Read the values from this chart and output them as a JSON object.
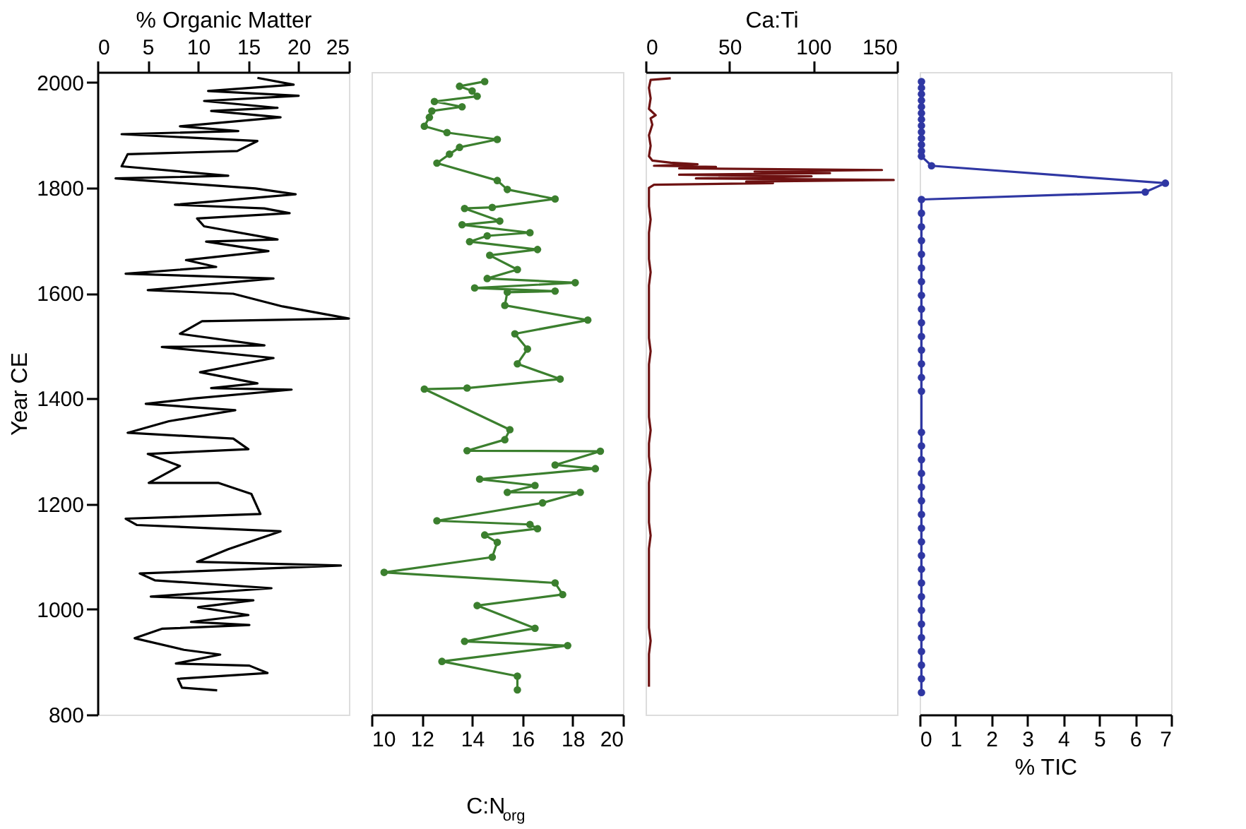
{
  "chart_data": [
    {
      "type": "line",
      "orientation": "horizontal",
      "ylabel": "Year CE",
      "ylim": [
        800,
        2020
      ],
      "yticks": [
        800,
        1000,
        1200,
        1400,
        1600,
        1800,
        2000
      ],
      "x2label": "% Organic Matter",
      "x2lim": [
        0,
        25
      ],
      "x2ticks": [
        0,
        5,
        10,
        15,
        20,
        25
      ],
      "marker": "none",
      "x": [
        2009,
        1996,
        1984,
        1975,
        1965,
        1952,
        1946,
        1934,
        1917,
        1908,
        1902,
        1889,
        1870,
        1864,
        1841,
        1823,
        1818,
        1799,
        1788,
        1768,
        1761,
        1752,
        1742,
        1727,
        1702,
        1698,
        1680,
        1663,
        1650,
        1637,
        1628,
        1606,
        1599,
        1575,
        1552,
        1547,
        1523,
        1501,
        1498,
        1477,
        1450,
        1429,
        1420,
        1417,
        1400,
        1390,
        1378,
        1357,
        1335,
        1324,
        1304,
        1295,
        1272,
        1240,
        1240,
        1219,
        1181,
        1172,
        1160,
        1148,
        1114,
        1090,
        1083,
        1068,
        1055,
        1040,
        1024,
        1017,
        1004,
        989,
        976,
        970,
        963,
        945,
        923,
        914,
        897,
        893,
        879,
        868,
        851,
        846
      ],
      "series": [
        {
          "axis": "x2",
          "color": "#000000",
          "values": [
            15.9,
            19.5,
            11,
            20,
            10.6,
            17.9,
            11.3,
            18.2,
            8.2,
            14,
            2.4,
            15.9,
            13.9,
            3,
            2.4,
            13,
            1.8,
            15.7,
            19.7,
            7.7,
            16.6,
            19.1,
            9.9,
            10.6,
            17.9,
            10.8,
            17,
            8.8,
            11.8,
            2.8,
            17.5,
            5,
            13.5,
            18.4,
            25,
            10.4,
            8.2,
            16.6,
            6.4,
            17.5,
            10.2,
            15.9,
            11.3,
            19.3,
            9.5,
            4.8,
            13.7,
            7.1,
            3,
            13.5,
            15,
            5,
            8.2,
            5.1,
            12,
            15.3,
            16.2,
            2.8,
            3.9,
            18.2,
            13,
            9.9,
            24.2,
            4.2,
            5.7,
            17.3,
            5.3,
            15.5,
            10,
            15,
            9.3,
            15.1,
            6.4,
            3.7,
            8.6,
            12.2,
            7.8,
            15.1,
            16.9,
            8,
            8.4,
            11.9
          ]
        }
      ]
    },
    {
      "type": "line",
      "orientation": "horizontal",
      "ylim": [
        800,
        2020
      ],
      "xlabel": "C:N$_{org}$",
      "xlim": [
        10,
        20
      ],
      "xticks": [
        10,
        12,
        14,
        16,
        18,
        20
      ],
      "marker": "circle",
      "tick_labels": "x",
      "x": [
        2002,
        1993,
        1984,
        1974,
        1964,
        1954,
        1946,
        1934,
        1917,
        1905,
        1892,
        1877,
        1864,
        1847,
        1814,
        1797,
        1779,
        1763,
        1761,
        1737,
        1730,
        1715,
        1709,
        1698,
        1683,
        1672,
        1645,
        1628,
        1620,
        1610,
        1604,
        1602,
        1577,
        1549,
        1523,
        1494,
        1466,
        1437,
        1420,
        1418,
        1341,
        1322,
        1301,
        1300,
        1274,
        1267,
        1247,
        1235,
        1222,
        1222,
        1202,
        1168,
        1161,
        1153,
        1141,
        1127,
        1099,
        1070,
        1050,
        1028,
        1007,
        964,
        939,
        931,
        901,
        873,
        847
      ],
      "series": [
        {
          "color": "#3b7f2e",
          "values": [
            14.5,
            13.5,
            14,
            14.2,
            12.5,
            13.6,
            12.4,
            12.3,
            12.1,
            13,
            15,
            13.5,
            13.1,
            12.6,
            15,
            15.4,
            17.3,
            14.8,
            13.7,
            15.1,
            13.6,
            16.3,
            14.6,
            13.9,
            16.6,
            14.7,
            15.8,
            14.6,
            18.1,
            14.1,
            17.3,
            15.4,
            15.3,
            18.6,
            15.7,
            16.2,
            15.8,
            17.5,
            13.8,
            12.1,
            15.5,
            15.3,
            13.8,
            19.1,
            17.3,
            18.9,
            14.3,
            16.5,
            15.4,
            18.3,
            16.8,
            12.6,
            16.3,
            16.6,
            14.5,
            15,
            14.8,
            10.5,
            17.3,
            17.6,
            14.2,
            16.5,
            13.7,
            17.8,
            12.8,
            15.8,
            15.8
          ]
        }
      ]
    },
    {
      "type": "line",
      "orientation": "horizontal",
      "ylim": [
        800,
        2020
      ],
      "x2label": "Ca:Ti",
      "x2lim": [
        0,
        150
      ],
      "x2ticks": [
        0,
        50,
        100,
        150
      ],
      "marker": "none",
      "tick_labels": "x",
      "x": [
        2008,
        2005,
        1990,
        1970,
        1950,
        1938,
        1932,
        1920,
        1900,
        1880,
        1860,
        1852,
        1848,
        1845,
        1842,
        1840,
        1837,
        1834,
        1831,
        1828,
        1825,
        1822,
        1818,
        1815,
        1812,
        1809,
        1806,
        1800,
        1790,
        1765,
        1740,
        1715,
        1690,
        1665,
        1640,
        1615,
        1590,
        1565,
        1540,
        1515,
        1490,
        1465,
        1440,
        1415,
        1390,
        1365,
        1340,
        1315,
        1290,
        1265,
        1240,
        1215,
        1190,
        1165,
        1140,
        1115,
        1090,
        1065,
        1040,
        1015,
        990,
        965,
        940,
        915,
        890,
        865,
        853
      ],
      "series": [
        {
          "axis": "x2",
          "color": "#6e1212",
          "values": [
            15,
            3,
            2,
            3,
            2,
            6,
            3,
            4,
            2,
            3,
            2,
            4,
            15,
            31,
            5,
            42,
            20,
            141,
            65,
            110,
            20,
            99,
            30,
            148,
            60,
            76,
            5,
            2,
            2,
            2,
            3,
            2,
            2,
            2,
            3,
            2,
            2,
            2,
            2,
            2,
            3,
            2,
            2,
            2,
            2,
            2,
            3,
            2,
            2,
            3,
            2,
            2,
            2,
            2,
            3,
            2,
            2,
            2,
            2,
            2,
            2,
            2,
            3,
            2,
            2,
            2,
            2
          ]
        }
      ]
    },
    {
      "type": "line",
      "orientation": "horizontal",
      "ylim": [
        800,
        2020
      ],
      "xlabel": "% TIC",
      "xlim": [
        0,
        7
      ],
      "xticks": [
        0,
        1,
        2,
        3,
        4,
        5,
        6,
        7
      ],
      "marker": "circle",
      "tick_labels": "x",
      "x": [
        2002,
        1990,
        1978,
        1966,
        1954,
        1942,
        1930,
        1918,
        1906,
        1894,
        1882,
        1870,
        1860,
        1842,
        1809,
        1792,
        1778,
        1752,
        1726,
        1700,
        1674,
        1648,
        1622,
        1596,
        1570,
        1544,
        1518,
        1492,
        1466,
        1440,
        1414,
        1336,
        1310,
        1284,
        1258,
        1232,
        1206,
        1180,
        1154,
        1128,
        1102,
        1076,
        1050,
        1024,
        998,
        972,
        946,
        920,
        894,
        868,
        842
      ],
      "series": [
        {
          "color": "#2f37a3",
          "values": [
            0.05,
            0.05,
            0.05,
            0.05,
            0.05,
            0.05,
            0.05,
            0.05,
            0.05,
            0.05,
            0.05,
            0.05,
            0.05,
            0.33,
            6.84,
            6.28,
            0.05,
            0.05,
            0.05,
            0.05,
            0.05,
            0.05,
            0.05,
            0.05,
            0.05,
            0.05,
            0.05,
            0.05,
            0.05,
            0.05,
            0.05,
            0.05,
            0.05,
            0.05,
            0.05,
            0.05,
            0.05,
            0.05,
            0.05,
            0.05,
            0.05,
            0.05,
            0.05,
            0.05,
            0.05,
            0.05,
            0.05,
            0.05,
            0.05,
            0.05,
            0.05
          ]
        }
      ]
    }
  ]
}
